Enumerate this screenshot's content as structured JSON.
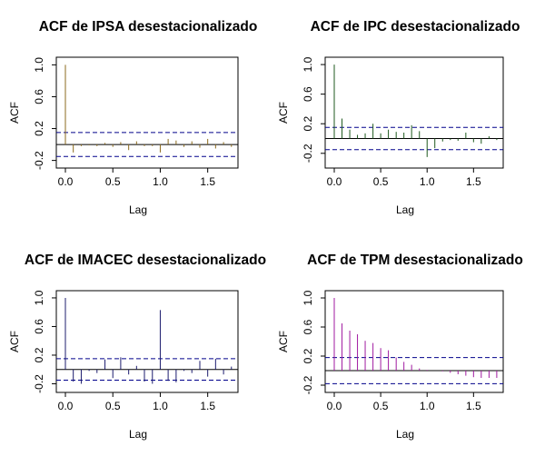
{
  "chart_data": [
    {
      "type": "bar",
      "title": "ACF de IPSA desestacionalizado",
      "xlabel": "Lag",
      "ylabel": "ACF",
      "xlim": [
        0,
        1.8
      ],
      "ylim": [
        -0.25,
        1.05
      ],
      "xticks": [
        0,
        0.5,
        1,
        1.5
      ],
      "xtick_labels": [
        "0.0",
        "0.5",
        "1.0",
        "1.5"
      ],
      "yticks": [
        -0.2,
        0.2,
        0.6,
        1.0
      ],
      "ytick_labels": [
        "-0.2",
        "0.2",
        "0.6",
        "1.0"
      ],
      "confidence_band": 0.15,
      "color": "#8b6a1c",
      "band_color": "#00008b",
      "x": [
        0,
        0.083,
        0.167,
        0.25,
        0.333,
        0.417,
        0.5,
        0.583,
        0.667,
        0.75,
        0.833,
        0.917,
        1.0,
        1.083,
        1.167,
        1.25,
        1.333,
        1.417,
        1.5,
        1.583,
        1.667,
        1.75
      ],
      "values": [
        1.0,
        -0.1,
        -0.02,
        -0.01,
        -0.02,
        0.02,
        -0.03,
        0.03,
        -0.07,
        0.04,
        -0.02,
        -0.02,
        -0.1,
        0.07,
        0.05,
        -0.03,
        0.04,
        -0.04,
        0.07,
        -0.05,
        0.03,
        -0.03
      ]
    },
    {
      "type": "bar",
      "title": "ACF de IPC desestacionalizado",
      "xlabel": "Lag",
      "ylabel": "ACF",
      "xlim": [
        0,
        1.8
      ],
      "ylim": [
        -0.35,
        1.05
      ],
      "xticks": [
        0,
        0.5,
        1,
        1.5
      ],
      "xtick_labels": [
        "0.0",
        "0.5",
        "1.0",
        "1.5"
      ],
      "yticks": [
        -0.2,
        0.2,
        0.6,
        1.0
      ],
      "ytick_labels": [
        "-0.2",
        "0.2",
        "0.6",
        "1.0"
      ],
      "confidence_band": 0.15,
      "color": "#1f5a1f",
      "band_color": "#00008b",
      "x": [
        0,
        0.083,
        0.167,
        0.25,
        0.333,
        0.417,
        0.5,
        0.583,
        0.667,
        0.75,
        0.833,
        0.917,
        1.0,
        1.083,
        1.167,
        1.25,
        1.333,
        1.417,
        1.5,
        1.583,
        1.667,
        1.75
      ],
      "values": [
        1.0,
        0.27,
        0.12,
        0.05,
        0.07,
        0.2,
        0.07,
        0.12,
        0.09,
        0.08,
        0.18,
        0.1,
        -0.25,
        -0.13,
        -0.04,
        -0.02,
        -0.03,
        0.08,
        -0.05,
        -0.07,
        0.03,
        -0.02
      ]
    },
    {
      "type": "bar",
      "title": "ACF de IMACEC desestacionalizado",
      "xlabel": "Lag",
      "ylabel": "ACF",
      "xlim": [
        0,
        1.8
      ],
      "ylim": [
        -0.27,
        1.05
      ],
      "xticks": [
        0,
        0.5,
        1,
        1.5
      ],
      "xtick_labels": [
        "0.0",
        "0.5",
        "1.0",
        "1.5"
      ],
      "yticks": [
        -0.2,
        0.2,
        0.6,
        1.0
      ],
      "ytick_labels": [
        "-0.2",
        "0.2",
        "0.6",
        "1.0"
      ],
      "confidence_band": 0.15,
      "color": "#1c1c6e",
      "band_color": "#00008b",
      "x": [
        0,
        0.083,
        0.167,
        0.25,
        0.333,
        0.417,
        0.5,
        0.583,
        0.667,
        0.75,
        0.833,
        0.917,
        1.0,
        1.083,
        1.167,
        1.25,
        1.333,
        1.417,
        1.5,
        1.583,
        1.667,
        1.75
      ],
      "values": [
        1.0,
        -0.17,
        -0.2,
        -0.02,
        -0.05,
        0.14,
        -0.12,
        0.17,
        -0.07,
        0.05,
        -0.17,
        -0.2,
        0.83,
        -0.16,
        -0.18,
        -0.02,
        -0.05,
        0.12,
        -0.1,
        0.15,
        -0.07,
        0.04
      ]
    },
    {
      "type": "bar",
      "title": "ACF de TPM desestacionalizado",
      "xlabel": "Lag",
      "ylabel": "ACF",
      "xlim": [
        0,
        1.8
      ],
      "ylim": [
        -0.25,
        1.05
      ],
      "xticks": [
        0,
        0.5,
        1,
        1.5
      ],
      "xtick_labels": [
        "0.0",
        "0.5",
        "1.0",
        "1.5"
      ],
      "yticks": [
        -0.2,
        0.2,
        0.6,
        1.0
      ],
      "ytick_labels": [
        "-0.2",
        "0.2",
        "0.6",
        "1.0"
      ],
      "confidence_band": 0.18,
      "color": "#a01aa0",
      "band_color": "#00008b",
      "x": [
        0,
        0.083,
        0.167,
        0.25,
        0.333,
        0.417,
        0.5,
        0.583,
        0.667,
        0.75,
        0.833,
        0.917,
        1.0,
        1.083,
        1.167,
        1.25,
        1.333,
        1.417,
        1.5,
        1.583,
        1.667,
        1.75
      ],
      "values": [
        1.0,
        0.65,
        0.55,
        0.5,
        0.41,
        0.38,
        0.31,
        0.28,
        0.18,
        0.12,
        0.08,
        0.03,
        0.01,
        0.0,
        -0.01,
        -0.03,
        -0.05,
        -0.07,
        -0.09,
        -0.1,
        -0.1,
        -0.1
      ]
    }
  ]
}
